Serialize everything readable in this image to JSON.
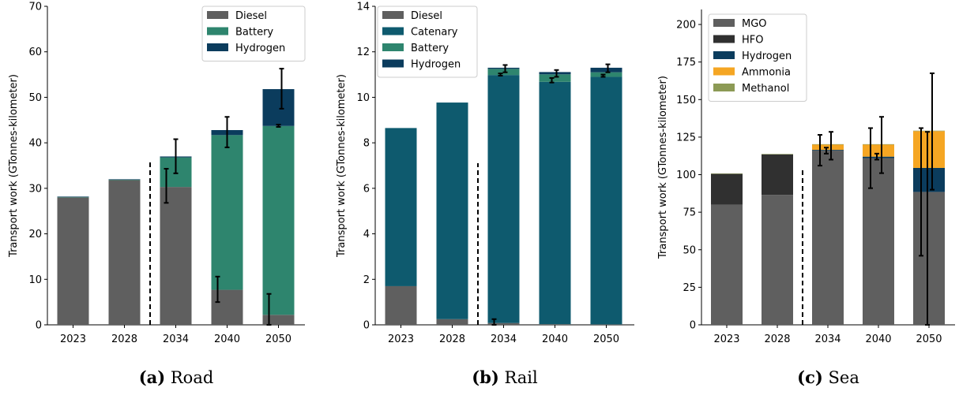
{
  "colors": {
    "Diesel": "#5f5f5f",
    "Catenary": "#0e5a6e",
    "Battery": "#2e856e",
    "Hydrogen": "#0b3c5d",
    "MGO": "#5f5f5f",
    "HFO": "#303030",
    "Ammonia": "#f5a623",
    "Methanol": "#8c9a55"
  },
  "chart_data": [
    {
      "type": "bar",
      "stacked": true,
      "caption_letter": "(a)",
      "caption_text": "Road",
      "ylabel": "Transport work (GTonnes-kilometer)",
      "xlabel": "",
      "categories": [
        "2023",
        "2028",
        "2034",
        "2040",
        "2050"
      ],
      "ylim": [
        0,
        70
      ],
      "yticks": [
        0,
        10,
        20,
        30,
        40,
        50,
        60,
        70
      ],
      "projection_divider_after_index": 1,
      "legend_position": "top-right",
      "series": [
        {
          "name": "Diesel",
          "values": [
            28.0,
            31.8,
            30.3,
            7.7,
            2.2
          ]
        },
        {
          "name": "Battery",
          "values": [
            0.1,
            0.1,
            6.5,
            34.0,
            41.5
          ]
        },
        {
          "name": "Hydrogen",
          "values": [
            0.1,
            0.1,
            0.2,
            1.1,
            8.1
          ]
        }
      ],
      "error_bars": [
        {
          "category_index": 2,
          "offset": -0.3,
          "center": 30.3,
          "low": 26.8,
          "high": 34.3
        },
        {
          "category_index": 2,
          "offset": 0.0,
          "center": 37.0,
          "low": 33.3,
          "high": 40.8
        },
        {
          "category_index": 3,
          "offset": -0.3,
          "center": 7.7,
          "low": 5.0,
          "high": 10.6
        },
        {
          "category_index": 3,
          "offset": 0.0,
          "center": 41.8,
          "low": 39.0,
          "high": 45.7
        },
        {
          "category_index": 4,
          "offset": -0.3,
          "center": 2.2,
          "low": 0.0,
          "high": 6.8
        },
        {
          "category_index": 4,
          "offset": 0.0,
          "center": 43.7,
          "low": 43.5,
          "high": 44.0
        },
        {
          "category_index": 4,
          "offset": 0.1,
          "center": 51.8,
          "low": 47.5,
          "high": 56.3
        }
      ]
    },
    {
      "type": "bar",
      "stacked": true,
      "caption_letter": "(b)",
      "caption_text": "Rail",
      "ylabel": "Transport work (GTonnes-kilometer)",
      "xlabel": "",
      "categories": [
        "2023",
        "2028",
        "2034",
        "2040",
        "2050"
      ],
      "ylim": [
        0,
        14
      ],
      "yticks": [
        0,
        2,
        4,
        6,
        8,
        10,
        12,
        14
      ],
      "projection_divider_after_index": 1,
      "legend_position": "top-left",
      "series": [
        {
          "name": "Diesel",
          "values": [
            1.7,
            0.25,
            0.08,
            0.03,
            0.02
          ]
        },
        {
          "name": "Catenary",
          "values": [
            6.95,
            9.52,
            10.9,
            10.65,
            10.88
          ]
        },
        {
          "name": "Battery",
          "values": [
            0.0,
            0.0,
            0.27,
            0.33,
            0.2
          ]
        },
        {
          "name": "Hydrogen",
          "values": [
            0.0,
            0.0,
            0.05,
            0.1,
            0.2
          ]
        }
      ],
      "error_bars": [
        {
          "category_index": 2,
          "offset": -0.3,
          "center": 0.08,
          "low": 0.0,
          "high": 0.25
        },
        {
          "category_index": 2,
          "offset": -0.1,
          "center": 11.0,
          "low": 10.95,
          "high": 11.05
        },
        {
          "category_index": 2,
          "offset": 0.05,
          "center": 11.27,
          "low": 11.1,
          "high": 11.42
        },
        {
          "category_index": 3,
          "offset": -0.1,
          "center": 10.75,
          "low": 10.65,
          "high": 10.85
        },
        {
          "category_index": 3,
          "offset": 0.05,
          "center": 11.05,
          "low": 10.9,
          "high": 11.2
        },
        {
          "category_index": 4,
          "offset": -0.1,
          "center": 10.95,
          "low": 10.9,
          "high": 11.0
        },
        {
          "category_index": 4,
          "offset": 0.05,
          "center": 11.27,
          "low": 11.1,
          "high": 11.45
        }
      ]
    },
    {
      "type": "bar",
      "stacked": true,
      "caption_letter": "(c)",
      "caption_text": "Sea",
      "ylabel": "Transport work (GTonnes-kilometer)",
      "xlabel": "",
      "categories": [
        "2023",
        "2028",
        "2034",
        "2040",
        "2050"
      ],
      "ylim": [
        0,
        210
      ],
      "yticks": [
        0,
        25,
        50,
        75,
        100,
        125,
        150,
        175,
        200
      ],
      "projection_divider_after_index": 1,
      "legend_position": "top-left",
      "series": [
        {
          "name": "MGO",
          "values": [
            80.0,
            86.5,
            116.0,
            111.0,
            88.5
          ]
        },
        {
          "name": "HFO",
          "values": [
            20.5,
            27.0,
            0.0,
            0.0,
            0.0
          ]
        },
        {
          "name": "Hydrogen",
          "values": [
            0.0,
            0.0,
            0.5,
            1.0,
            16.0
          ]
        },
        {
          "name": "Ammonia",
          "values": [
            0.0,
            0.0,
            3.5,
            8.0,
            24.5
          ]
        },
        {
          "name": "Methanol",
          "values": [
            0.3,
            0.3,
            0.3,
            0.3,
            0.3
          ]
        }
      ],
      "error_bars": [
        {
          "category_index": 2,
          "offset": -0.25,
          "center": 116.0,
          "low": 106.0,
          "high": 126.5
        },
        {
          "category_index": 2,
          "offset": -0.05,
          "center": 116.0,
          "low": 114.0,
          "high": 118.0
        },
        {
          "category_index": 2,
          "offset": 0.1,
          "center": 119.5,
          "low": 110.0,
          "high": 128.5
        },
        {
          "category_index": 3,
          "offset": -0.25,
          "center": 111.0,
          "low": 91.0,
          "high": 131.0
        },
        {
          "category_index": 3,
          "offset": -0.05,
          "center": 112.0,
          "low": 110.0,
          "high": 114.0
        },
        {
          "category_index": 3,
          "offset": 0.1,
          "center": 120.0,
          "low": 101.0,
          "high": 138.5
        },
        {
          "category_index": 4,
          "offset": -0.25,
          "center": 88.5,
          "low": 46.0,
          "high": 131.0
        },
        {
          "category_index": 4,
          "offset": -0.05,
          "center": 104.5,
          "low": 0.0,
          "high": 128.5
        },
        {
          "category_index": 4,
          "offset": 0.1,
          "center": 129.0,
          "low": 90.0,
          "high": 167.5
        }
      ]
    }
  ]
}
